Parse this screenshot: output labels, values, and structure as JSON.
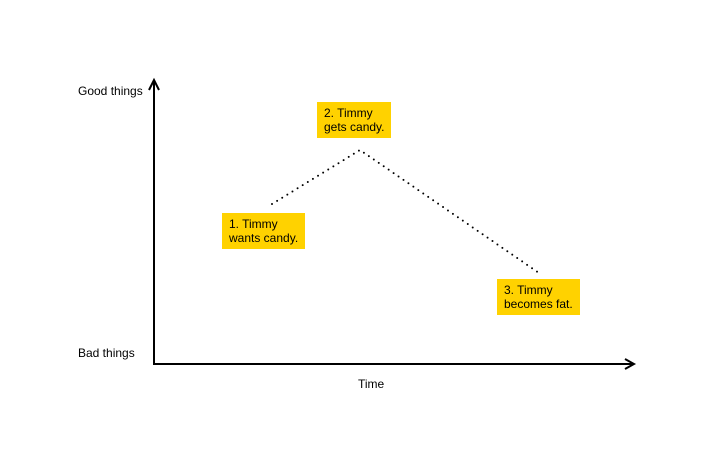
{
  "y_axis": {
    "top_label": "Good things",
    "bottom_label": "Bad things"
  },
  "x_axis": {
    "label": "Time"
  },
  "events": [
    {
      "line1": "1. Timmy",
      "line2": "wants candy."
    },
    {
      "line1": "2. Timmy",
      "line2": "gets candy."
    },
    {
      "line1": "3. Timmy",
      "line2": "becomes fat."
    }
  ],
  "colors": {
    "note_fill": "#FFD200",
    "axis": "#000000",
    "dots": "#000000"
  }
}
